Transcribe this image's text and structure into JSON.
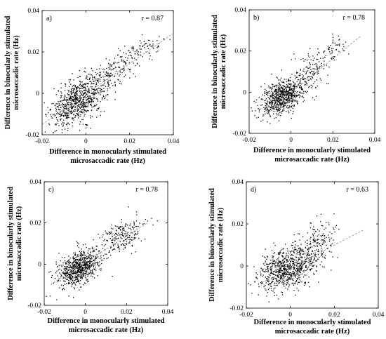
{
  "axis": {
    "ticks": [
      -0.02,
      0,
      0.02,
      0.04
    ],
    "tick_labels": [
      "-0.02",
      "0",
      "0.02",
      "0.04"
    ],
    "xlabel": [
      "Difference in monocularly stimulated",
      "microsaccadic rate (Hz)"
    ],
    "ylabel": [
      "Difference in binocularly stimulated",
      "microsaccadic rate (Hz)"
    ]
  },
  "chart_data": [
    {
      "type": "scatter",
      "panel_label": "a)",
      "r_label": "r = 0.87",
      "xlim": [
        -0.02,
        0.04
      ],
      "ylim": [
        -0.02,
        0.04
      ],
      "grid": false,
      "fit_line": {
        "x": [
          -0.02,
          0.04
        ],
        "y": [
          -0.015,
          0.029
        ]
      },
      "cloud": [
        {
          "cx": -0.003,
          "cy": -0.003,
          "sx": 0.006,
          "sy": 0.005,
          "n": 700
        },
        {
          "cx": 0.012,
          "cy": 0.01,
          "sx": 0.005,
          "sy": 0.004,
          "n": 160
        },
        {
          "cx": 0.026,
          "cy": 0.021,
          "sx": 0.005,
          "sy": 0.003,
          "n": 90
        },
        {
          "cx": -0.01,
          "cy": -0.01,
          "sx": 0.003,
          "sy": 0.003,
          "n": 60
        }
      ]
    },
    {
      "type": "scatter",
      "panel_label": "b)",
      "r_label": "r = 0.78",
      "xlim": [
        -0.02,
        0.04
      ],
      "ylim": [
        -0.02,
        0.04
      ],
      "grid": false,
      "fit_line": {
        "x": [
          -0.012,
          0.033
        ],
        "y": [
          -0.01,
          0.027
        ]
      },
      "cloud": [
        {
          "cx": -0.004,
          "cy": -0.002,
          "sx": 0.005,
          "sy": 0.004,
          "n": 750
        },
        {
          "cx": 0.01,
          "cy": 0.01,
          "sx": 0.004,
          "sy": 0.005,
          "n": 130
        },
        {
          "cx": 0.02,
          "cy": 0.021,
          "sx": 0.003,
          "sy": 0.003,
          "n": 50
        }
      ]
    },
    {
      "type": "scatter",
      "panel_label": "c)",
      "r_label": "r = 0.78",
      "xlim": [
        -0.02,
        0.04
      ],
      "ylim": [
        -0.02,
        0.04
      ],
      "grid": false,
      "fit_line": {
        "x": [
          -0.017,
          0.03
        ],
        "y": [
          -0.01,
          0.02
        ]
      },
      "cloud": [
        {
          "cx": -0.003,
          "cy": -0.002,
          "sx": 0.005,
          "sy": 0.004,
          "n": 750
        },
        {
          "cx": 0.017,
          "cy": 0.013,
          "sx": 0.006,
          "sy": 0.004,
          "n": 220
        }
      ]
    },
    {
      "type": "scatter",
      "panel_label": "d)",
      "r_label": "r = 0.63",
      "xlim": [
        -0.02,
        0.04
      ],
      "ylim": [
        -0.02,
        0.04
      ],
      "grid": false,
      "fit_line": {
        "x": [
          -0.013,
          0.033
        ],
        "y": [
          -0.008,
          0.017
        ]
      },
      "cloud": [
        {
          "cx": -0.002,
          "cy": -0.001,
          "sx": 0.006,
          "sy": 0.005,
          "n": 750
        },
        {
          "cx": 0.012,
          "cy": 0.01,
          "sx": 0.005,
          "sy": 0.006,
          "n": 200
        }
      ]
    }
  ]
}
